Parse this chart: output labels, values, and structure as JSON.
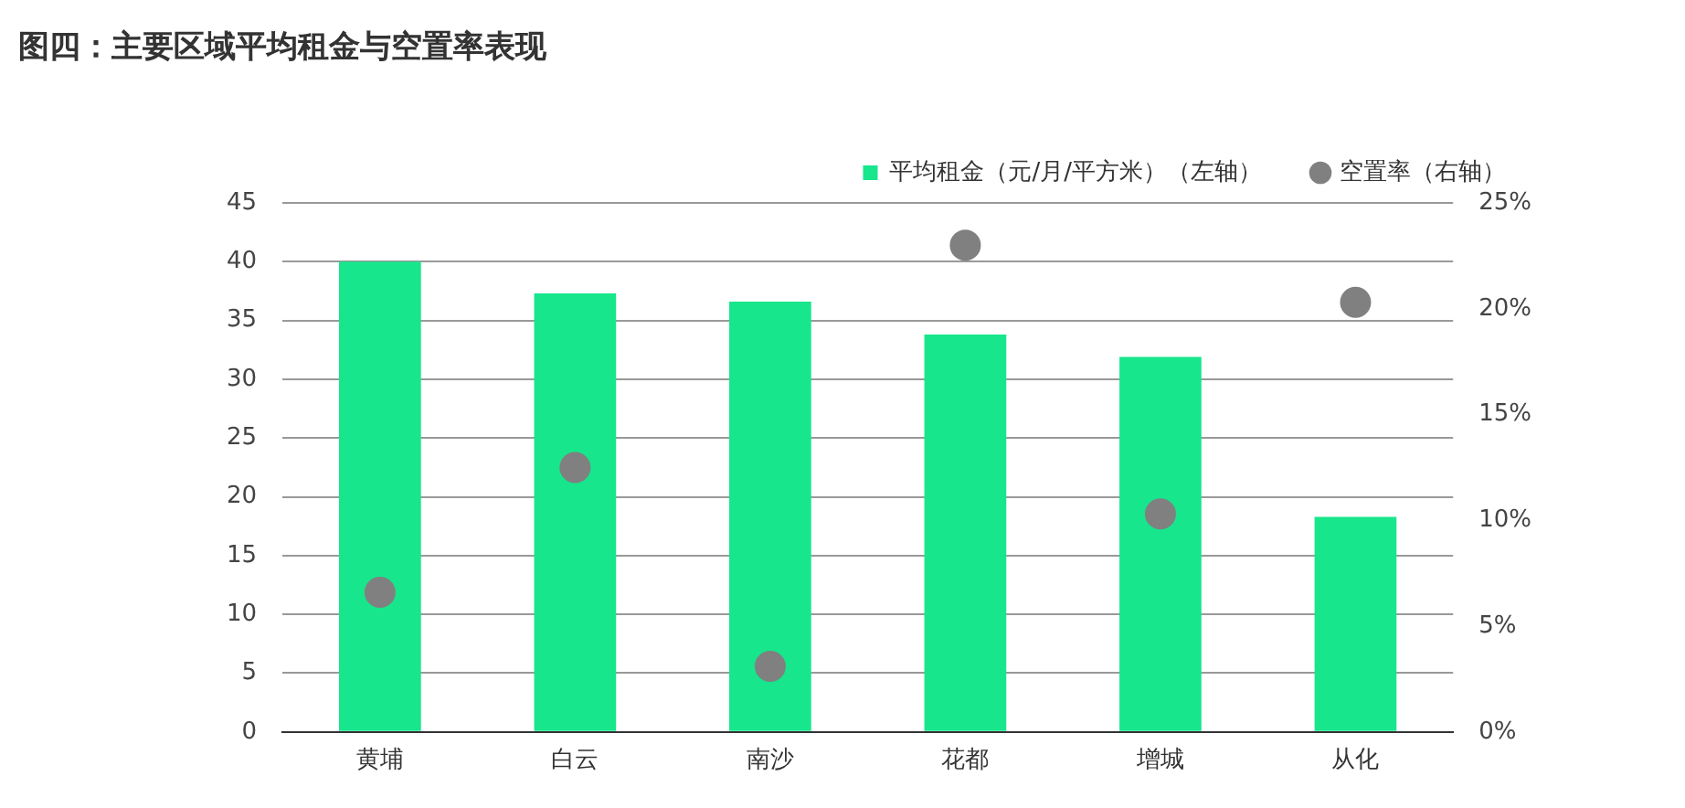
{
  "chart_data": {
    "type": "bar",
    "title": "图四：主要区域平均租金与空置率表现",
    "categories": [
      "黄埔",
      "白云",
      "南沙",
      "花都",
      "增城",
      "从化"
    ],
    "series": [
      {
        "name": "平均租金（元/月/平方米）（左轴）",
        "color": "#17e68c",
        "values": [
          40.0,
          37.3,
          36.6,
          33.8,
          31.9,
          18.3
        ]
      },
      {
        "name": "空置率（右轴）",
        "type": "scatter",
        "axis": "y2",
        "color": "#808080",
        "marker": "circle",
        "values": [
          6.6,
          12.5,
          3.1,
          23.0,
          10.3,
          20.3
        ]
      }
    ],
    "ylim": [
      0,
      45
    ],
    "yticks": [
      0,
      5,
      10,
      15,
      20,
      25,
      30,
      35,
      40,
      45
    ],
    "y2lim": [
      0,
      25
    ],
    "y2ticks": [
      {
        "value": 0,
        "label": "0%"
      },
      {
        "value": 5,
        "label": "5%"
      },
      {
        "value": 10,
        "label": "10%"
      },
      {
        "value": 15,
        "label": "15%"
      },
      {
        "value": 20,
        "label": "20%"
      },
      {
        "value": 25,
        "label": "25%"
      }
    ],
    "grid": "y",
    "legend": "top right"
  }
}
